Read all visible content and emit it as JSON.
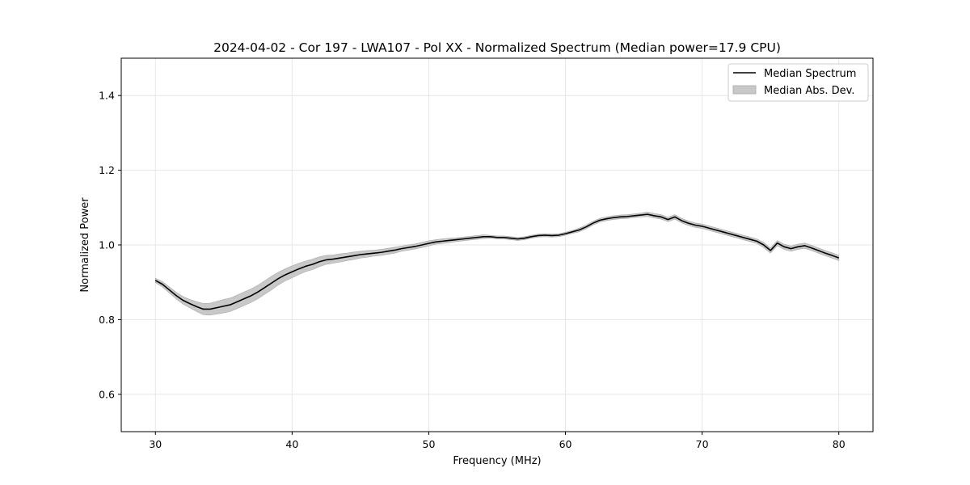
{
  "chart_data": {
    "type": "line",
    "title": "2024-04-02 - Cor 197 - LWA107 - Pol XX - Normalized Spectrum (Median power=17.9 CPU)",
    "xlabel": "Frequency (MHz)",
    "ylabel": "Normalized Power",
    "xlim": [
      27.5,
      82.5
    ],
    "ylim": [
      0.5,
      1.5
    ],
    "xticks": [
      30,
      40,
      50,
      60,
      70,
      80
    ],
    "xtick_labels": [
      "30",
      "40",
      "50",
      "60",
      "70",
      "80"
    ],
    "yticks": [
      0.6,
      0.8,
      1.0,
      1.2,
      1.4
    ],
    "ytick_labels": [
      "0.6",
      "0.8",
      "1.0",
      "1.2",
      "1.4"
    ],
    "grid": true,
    "legend_position": "top-right",
    "legend": [
      "Median Spectrum",
      "Median Abs. Dev."
    ],
    "series": [
      {
        "name": "Median Spectrum",
        "color": "#000000",
        "x": [
          30,
          30.5,
          31,
          31.5,
          32,
          32.5,
          33,
          33.5,
          34,
          34.5,
          35,
          35.5,
          36,
          36.5,
          37,
          37.5,
          38,
          38.5,
          39,
          39.5,
          40,
          40.5,
          41,
          41.5,
          42,
          42.5,
          43,
          43.5,
          44,
          44.5,
          45,
          45.5,
          46,
          46.5,
          47,
          47.5,
          48,
          48.5,
          49,
          49.5,
          50,
          50.5,
          51,
          51.5,
          52,
          52.5,
          53,
          53.5,
          54,
          54.5,
          55,
          55.5,
          56,
          56.5,
          57,
          57.5,
          58,
          58.5,
          59,
          59.5,
          60,
          60.5,
          61,
          61.5,
          62,
          62.5,
          63,
          63.5,
          64,
          64.5,
          65,
          65.5,
          66,
          66.5,
          67,
          67.5,
          68,
          68.5,
          69,
          69.5,
          70,
          70.5,
          71,
          71.5,
          72,
          72.5,
          73,
          73.5,
          74,
          74.5,
          75,
          75.5,
          76,
          76.5,
          77,
          77.5,
          78,
          78.5,
          79,
          79.5,
          80
        ],
        "values": [
          0.905,
          0.895,
          0.88,
          0.865,
          0.852,
          0.843,
          0.835,
          0.828,
          0.828,
          0.832,
          0.836,
          0.84,
          0.848,
          0.856,
          0.864,
          0.874,
          0.886,
          0.898,
          0.91,
          0.92,
          0.928,
          0.936,
          0.943,
          0.948,
          0.955,
          0.96,
          0.962,
          0.965,
          0.968,
          0.971,
          0.974,
          0.976,
          0.978,
          0.98,
          0.983,
          0.986,
          0.99,
          0.993,
          0.996,
          1.0,
          1.004,
          1.008,
          1.01,
          1.012,
          1.014,
          1.016,
          1.018,
          1.02,
          1.022,
          1.022,
          1.02,
          1.02,
          1.018,
          1.016,
          1.018,
          1.022,
          1.025,
          1.026,
          1.025,
          1.026,
          1.03,
          1.035,
          1.04,
          1.048,
          1.058,
          1.066,
          1.07,
          1.073,
          1.075,
          1.076,
          1.078,
          1.08,
          1.082,
          1.078,
          1.075,
          1.068,
          1.075,
          1.065,
          1.058,
          1.053,
          1.05,
          1.045,
          1.04,
          1.035,
          1.03,
          1.025,
          1.02,
          1.015,
          1.01,
          1.0,
          0.985,
          1.005,
          0.995,
          0.99,
          0.995,
          0.998,
          0.992,
          0.985,
          0.978,
          0.972,
          0.965
        ]
      },
      {
        "name": "Median Abs. Dev.",
        "color": "#c8c8c8",
        "type": "band",
        "x": [
          30,
          30.5,
          31,
          31.5,
          32,
          32.5,
          33,
          33.5,
          34,
          34.5,
          35,
          35.5,
          36,
          36.5,
          37,
          37.5,
          38,
          38.5,
          39,
          39.5,
          40,
          40.5,
          41,
          41.5,
          42,
          42.5,
          43,
          43.5,
          44,
          44.5,
          45,
          45.5,
          46,
          46.5,
          47,
          47.5,
          48,
          48.5,
          49,
          49.5,
          50,
          50.5,
          51,
          51.5,
          52,
          52.5,
          53,
          53.5,
          54,
          54.5,
          55,
          55.5,
          56,
          56.5,
          57,
          57.5,
          58,
          58.5,
          59,
          59.5,
          60,
          60.5,
          61,
          61.5,
          62,
          62.5,
          63,
          63.5,
          64,
          64.5,
          65,
          65.5,
          66,
          66.5,
          67,
          67.5,
          68,
          68.5,
          69,
          69.5,
          70,
          70.5,
          71,
          71.5,
          72,
          72.5,
          73,
          73.5,
          74,
          74.5,
          75,
          75.5,
          76,
          76.5,
          77,
          77.5,
          78,
          78.5,
          79,
          79.5,
          80
        ],
        "half_width": [
          0.006,
          0.007,
          0.008,
          0.009,
          0.01,
          0.011,
          0.013,
          0.015,
          0.016,
          0.017,
          0.018,
          0.018,
          0.018,
          0.018,
          0.018,
          0.018,
          0.018,
          0.018,
          0.017,
          0.016,
          0.016,
          0.015,
          0.014,
          0.014,
          0.013,
          0.012,
          0.011,
          0.011,
          0.01,
          0.01,
          0.009,
          0.009,
          0.008,
          0.008,
          0.008,
          0.008,
          0.007,
          0.007,
          0.007,
          0.007,
          0.007,
          0.006,
          0.006,
          0.006,
          0.005,
          0.005,
          0.005,
          0.005,
          0.005,
          0.004,
          0.004,
          0.004,
          0.004,
          0.004,
          0.004,
          0.004,
          0.004,
          0.004,
          0.004,
          0.004,
          0.004,
          0.004,
          0.005,
          0.005,
          0.005,
          0.005,
          0.005,
          0.005,
          0.005,
          0.005,
          0.005,
          0.005,
          0.006,
          0.006,
          0.006,
          0.006,
          0.006,
          0.006,
          0.006,
          0.006,
          0.006,
          0.006,
          0.006,
          0.006,
          0.006,
          0.006,
          0.006,
          0.006,
          0.006,
          0.007,
          0.007,
          0.007,
          0.007,
          0.007,
          0.007,
          0.007,
          0.007,
          0.007,
          0.007,
          0.007,
          0.007
        ]
      }
    ]
  }
}
